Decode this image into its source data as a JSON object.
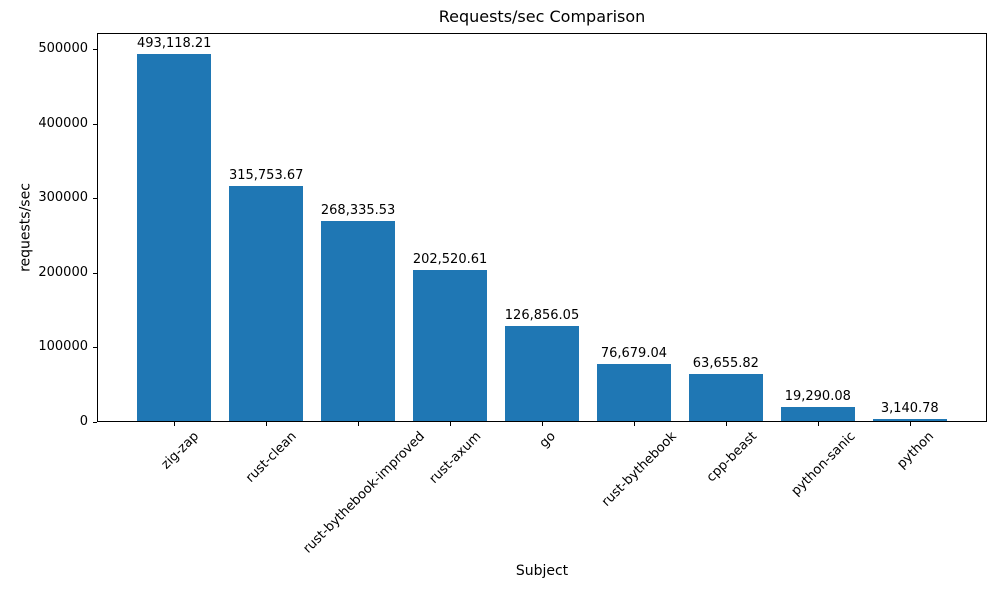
{
  "chart_data": {
    "type": "bar",
    "title": "Requests/sec Comparison",
    "xlabel": "Subject",
    "ylabel": "requests/sec",
    "categories": [
      "zig-zap",
      "rust-clean",
      "rust-bythebook-improved",
      "rust-axum",
      "go",
      "rust-bythebook",
      "cpp-beast",
      "python-sanic",
      "python"
    ],
    "values": [
      493118.21,
      315753.67,
      268335.53,
      202520.61,
      126856.05,
      76679.04,
      63655.82,
      19290.08,
      3140.78
    ],
    "value_labels": [
      "493,118.21",
      "315,753.67",
      "268,335.53",
      "202,520.61",
      "126,856.05",
      "76,679.04",
      "63,655.82",
      "19,290.08",
      "3,140.78"
    ],
    "yticks": [
      0,
      100000,
      200000,
      300000,
      400000,
      500000
    ],
    "ytick_labels": [
      "0",
      "100000",
      "200000",
      "300000",
      "400000",
      "500000"
    ],
    "ylim": [
      0,
      522000
    ],
    "bar_color": "#1f77b4",
    "text_color": "#000000",
    "grid": false,
    "legend": null,
    "x_tick_rotation_deg": 45
  }
}
